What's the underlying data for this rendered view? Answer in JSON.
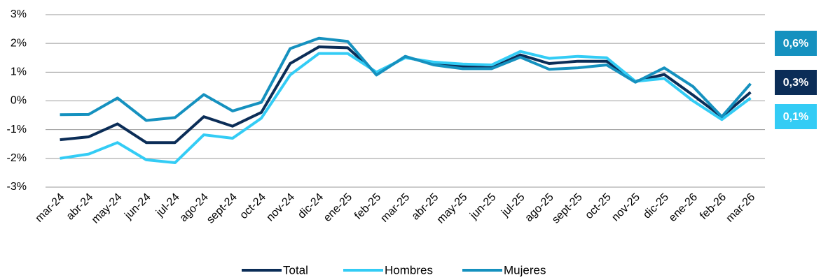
{
  "chart_data": {
    "type": "line",
    "categories": [
      "mar-24",
      "abr-24",
      "may-24",
      "jun-24",
      "jul-24",
      "ago-24",
      "sept-24",
      "oct-24",
      "nov-24",
      "dic-24",
      "ene-25",
      "feb-25",
      "mar-25",
      "abr-25",
      "may-25",
      "jun-25",
      "jul-25",
      "ago-25",
      "sept-25",
      "oct-25",
      "nov-25",
      "dic-25",
      "ene-26",
      "feb-26",
      "mar-26"
    ],
    "series": [
      {
        "name": "Total",
        "color": "#0b2d57",
        "values": [
          -1.35,
          -1.25,
          -0.8,
          -1.45,
          -1.45,
          -0.55,
          -0.88,
          -0.4,
          1.3,
          1.88,
          1.85,
          0.95,
          1.52,
          1.3,
          1.2,
          1.15,
          1.6,
          1.3,
          1.38,
          1.38,
          0.68,
          0.92,
          0.2,
          -0.55,
          0.3
        ],
        "value_labels": [
          null,
          null,
          null,
          null,
          null,
          null,
          null,
          null,
          null,
          null,
          null,
          null,
          null,
          null,
          null,
          null,
          null,
          null,
          null,
          null,
          null,
          null,
          null,
          null,
          "0,3%"
        ]
      },
      {
        "name": "Hombres",
        "color": "#33ccf5",
        "values": [
          -2.0,
          -1.85,
          -1.45,
          -2.05,
          -2.15,
          -1.18,
          -1.3,
          -0.6,
          0.9,
          1.65,
          1.65,
          1.0,
          1.5,
          1.35,
          1.28,
          1.25,
          1.72,
          1.48,
          1.55,
          1.5,
          0.68,
          0.78,
          0.0,
          -0.65,
          0.1
        ],
        "value_labels": [
          null,
          null,
          null,
          null,
          null,
          null,
          null,
          null,
          null,
          null,
          null,
          null,
          null,
          null,
          null,
          null,
          null,
          null,
          null,
          null,
          null,
          null,
          null,
          null,
          "0,1%"
        ]
      },
      {
        "name": "Mujeres",
        "color": "#1591bf",
        "values": [
          -0.48,
          -0.47,
          0.1,
          -0.68,
          -0.58,
          0.22,
          -0.35,
          -0.05,
          1.82,
          2.18,
          2.07,
          0.9,
          1.55,
          1.25,
          1.12,
          1.12,
          1.52,
          1.1,
          1.15,
          1.25,
          0.65,
          1.15,
          0.5,
          -0.55,
          0.6
        ],
        "value_labels": [
          null,
          null,
          null,
          null,
          null,
          null,
          null,
          null,
          null,
          null,
          null,
          null,
          null,
          null,
          null,
          null,
          null,
          null,
          null,
          null,
          null,
          null,
          null,
          null,
          "0,6%"
        ]
      }
    ],
    "ylim": [
      -3,
      3
    ],
    "yticks": [
      {
        "value": -3,
        "label": "-3%"
      },
      {
        "value": -2,
        "label": "-2%"
      },
      {
        "value": -1,
        "label": "-1%"
      },
      {
        "value": 0,
        "label": "0%"
      },
      {
        "value": 1,
        "label": "1%"
      },
      {
        "value": 2,
        "label": "2%"
      },
      {
        "value": 3,
        "label": "3%"
      }
    ],
    "grid": true,
    "legend": "bottom"
  }
}
